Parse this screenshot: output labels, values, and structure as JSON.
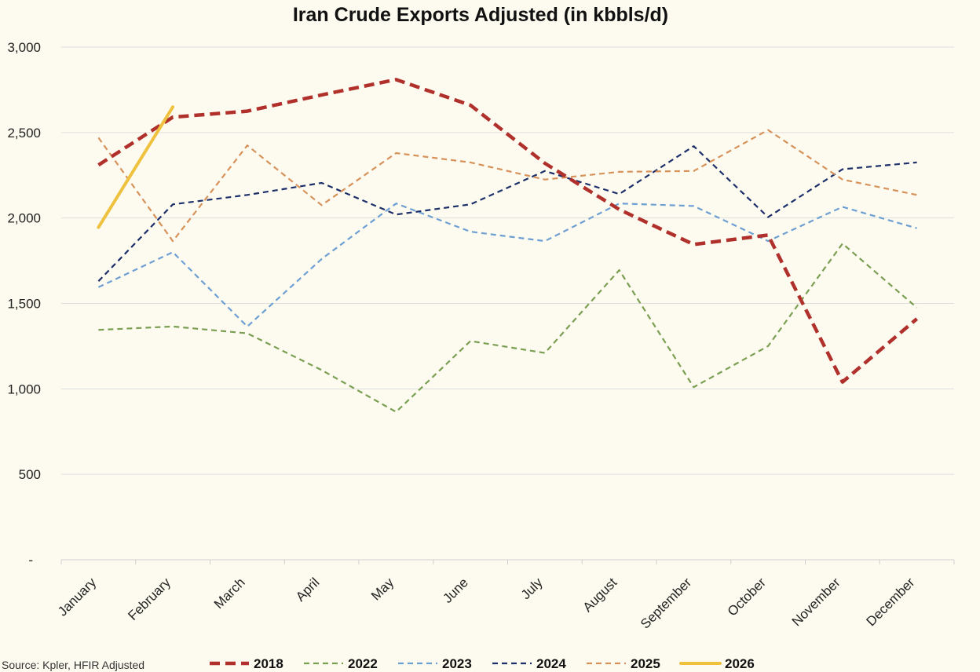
{
  "chart_data": {
    "type": "line",
    "title": "Iran Crude Exports Adjusted (in kbbls/d)",
    "xlabel": "",
    "ylabel": "",
    "ylim": [
      0,
      3000
    ],
    "yticks": [
      0,
      500,
      1000,
      1500,
      2000,
      2500,
      3000
    ],
    "ytick_labels": [
      "-",
      "500",
      "1,000",
      "1,500",
      "2,000",
      "2,500",
      "3,000"
    ],
    "categories": [
      "January",
      "February",
      "March",
      "April",
      "May",
      "June",
      "July",
      "August",
      "September",
      "October",
      "November",
      "December"
    ],
    "grid": true,
    "legend_position": "bottom",
    "source": "Source: Kpler, HFIR Adjusted",
    "series": [
      {
        "name": "2022",
        "color": "#7a9e52",
        "style": "dashed-thin",
        "values": [
          1345,
          1365,
          1325,
          1110,
          865,
          1280,
          1210,
          1695,
          1010,
          1250,
          1850,
          1475
        ]
      },
      {
        "name": "2023",
        "color": "#6e9fd3",
        "style": "dashed-thin",
        "values": [
          1595,
          1800,
          1365,
          1760,
          2085,
          1920,
          1865,
          2085,
          2070,
          1865,
          2065,
          1940
        ]
      },
      {
        "name": "2024",
        "color": "#1c2f6a",
        "style": "dashed-thin",
        "values": [
          1630,
          2080,
          2135,
          2205,
          2020,
          2080,
          2275,
          2140,
          2420,
          2005,
          2285,
          2325
        ]
      },
      {
        "name": "2025",
        "color": "#d6925a",
        "style": "dashed-thin",
        "values": [
          2470,
          1865,
          2425,
          2075,
          2380,
          2325,
          2225,
          2270,
          2275,
          2515,
          2225,
          2135
        ]
      },
      {
        "name": "2018",
        "color": "#b0302c",
        "style": "dashed-thick",
        "values": [
          2310,
          2590,
          2625,
          2720,
          2810,
          2660,
          2320,
          2050,
          1845,
          1900,
          1040,
          1410
        ]
      },
      {
        "name": "2026",
        "color": "#eec23f",
        "style": "solid",
        "values": [
          1945,
          2650,
          null,
          null,
          null,
          null,
          null,
          null,
          null,
          null,
          null,
          null
        ]
      }
    ],
    "legend_order": [
      "2018",
      "2022",
      "2023",
      "2024",
      "2025",
      "2026"
    ]
  }
}
